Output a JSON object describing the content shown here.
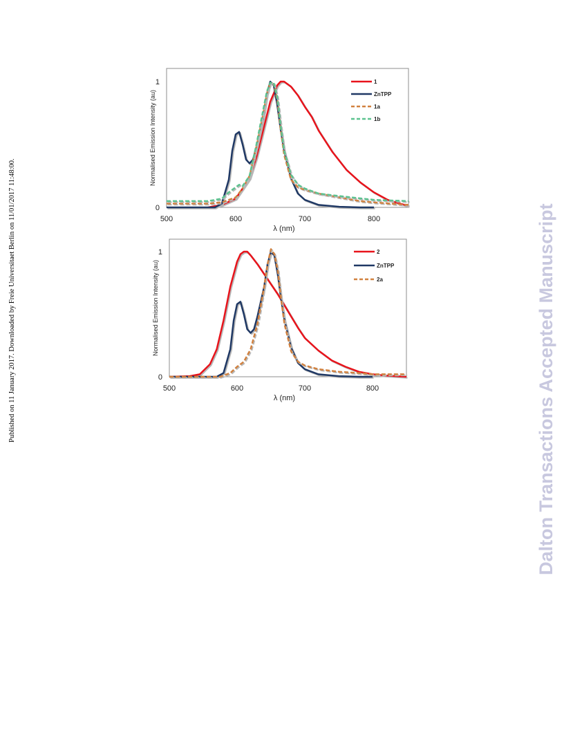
{
  "side_note": "Published on 11 January 2017. Downloaded by Freie Universitaet Berlin on 11/01/2017 11:48:00.",
  "watermark": "Dalton Transactions Accepted Manuscript",
  "colors": {
    "red": "#e8131b",
    "navy": "#1f3864",
    "orange": "#d1813f",
    "green": "#5cc28f"
  },
  "chart_data": [
    {
      "type": "line",
      "xlabel": "λ (nm)",
      "ylabel": "Normalised Emission Intensity (au)",
      "xlim": [
        500,
        850
      ],
      "ylim": [
        0,
        1.1
      ],
      "xticks": [
        500,
        600,
        700,
        800
      ],
      "yticks": [
        0,
        1
      ],
      "legend_position": "top-right",
      "grid": false,
      "series": [
        {
          "name": "1",
          "color": "#e8131b",
          "dashed": false,
          "x": [
            560,
            580,
            600,
            620,
            630,
            640,
            650,
            660,
            665,
            670,
            680,
            690,
            700,
            710,
            720,
            740,
            760,
            780,
            800,
            820,
            850
          ],
          "y": [
            0,
            0.02,
            0.07,
            0.23,
            0.4,
            0.62,
            0.84,
            0.97,
            1.0,
            1.0,
            0.96,
            0.89,
            0.8,
            0.72,
            0.61,
            0.44,
            0.3,
            0.2,
            0.12,
            0.06,
            0.01
          ]
        },
        {
          "name": "ZnTPP",
          "color": "#1f3864",
          "dashed": false,
          "x": [
            500,
            570,
            580,
            590,
            595,
            600,
            605,
            610,
            615,
            620,
            625,
            630,
            640,
            645,
            650,
            655,
            660,
            665,
            670,
            680,
            690,
            700,
            720,
            750,
            780,
            800
          ],
          "y": [
            0,
            0,
            0.03,
            0.22,
            0.45,
            0.58,
            0.6,
            0.5,
            0.38,
            0.35,
            0.38,
            0.48,
            0.72,
            0.9,
            1.0,
            0.97,
            0.82,
            0.62,
            0.45,
            0.23,
            0.11,
            0.06,
            0.02,
            0.005,
            0,
            0
          ]
        },
        {
          "name": "1a",
          "color": "#d1813f",
          "dashed": true,
          "x": [
            500,
            560,
            580,
            600,
            610,
            620,
            630,
            640,
            645,
            650,
            655,
            660,
            665,
            670,
            680,
            690,
            700,
            720,
            750,
            780,
            800,
            850
          ],
          "y": [
            0.03,
            0.03,
            0.04,
            0.08,
            0.15,
            0.25,
            0.48,
            0.75,
            0.9,
            0.99,
            0.98,
            0.86,
            0.62,
            0.42,
            0.22,
            0.16,
            0.14,
            0.11,
            0.08,
            0.05,
            0.04,
            0.02
          ]
        },
        {
          "name": "1b",
          "color": "#5cc28f",
          "dashed": true,
          "x": [
            500,
            560,
            580,
            590,
            600,
            605,
            610,
            620,
            630,
            640,
            645,
            650,
            655,
            660,
            665,
            670,
            680,
            690,
            700,
            720,
            750,
            800,
            850
          ],
          "y": [
            0.05,
            0.05,
            0.07,
            0.12,
            0.16,
            0.18,
            0.17,
            0.25,
            0.5,
            0.78,
            0.92,
            0.99,
            0.99,
            0.88,
            0.65,
            0.45,
            0.26,
            0.18,
            0.15,
            0.11,
            0.09,
            0.06,
            0.05
          ]
        }
      ]
    },
    {
      "type": "line",
      "xlabel": "λ (nm)",
      "ylabel": "Normalised Emission Intensity (au)",
      "xlim": [
        500,
        850
      ],
      "ylim": [
        0,
        1.1
      ],
      "xticks": [
        500,
        600,
        700,
        800
      ],
      "yticks": [
        0,
        1
      ],
      "legend_position": "top-right",
      "grid": false,
      "series": [
        {
          "name": "2",
          "color": "#e8131b",
          "dashed": false,
          "x": [
            500,
            530,
            545,
            560,
            570,
            580,
            590,
            600,
            605,
            610,
            615,
            620,
            630,
            640,
            650,
            660,
            670,
            680,
            690,
            700,
            720,
            740,
            760,
            780,
            800,
            820,
            850
          ],
          "y": [
            0,
            0.005,
            0.02,
            0.1,
            0.22,
            0.45,
            0.72,
            0.92,
            0.98,
            1.0,
            1.0,
            0.97,
            0.9,
            0.82,
            0.74,
            0.66,
            0.57,
            0.48,
            0.39,
            0.31,
            0.21,
            0.13,
            0.08,
            0.04,
            0.02,
            0.01,
            0
          ]
        },
        {
          "name": "ZnTPP",
          "color": "#1f3864",
          "dashed": false,
          "x": [
            500,
            570,
            580,
            590,
            595,
            600,
            605,
            610,
            615,
            620,
            625,
            630,
            640,
            645,
            650,
            655,
            660,
            665,
            670,
            680,
            690,
            700,
            720,
            750,
            780,
            800
          ],
          "y": [
            0,
            0,
            0.03,
            0.22,
            0.45,
            0.58,
            0.6,
            0.5,
            0.38,
            0.35,
            0.38,
            0.48,
            0.72,
            0.9,
            1.0,
            0.97,
            0.82,
            0.62,
            0.45,
            0.23,
            0.11,
            0.06,
            0.02,
            0.005,
            0,
            0
          ]
        },
        {
          "name": "2a",
          "color": "#d1813f",
          "dashed": true,
          "x": [
            500,
            575,
            590,
            600,
            610,
            620,
            630,
            640,
            645,
            650,
            655,
            660,
            665,
            670,
            680,
            690,
            700,
            720,
            750,
            780,
            800,
            850
          ],
          "y": [
            0,
            0,
            0.03,
            0.08,
            0.12,
            0.22,
            0.42,
            0.72,
            0.9,
            1.02,
            0.98,
            0.85,
            0.62,
            0.42,
            0.2,
            0.12,
            0.09,
            0.06,
            0.04,
            0.03,
            0.02,
            0.02
          ]
        }
      ]
    }
  ]
}
